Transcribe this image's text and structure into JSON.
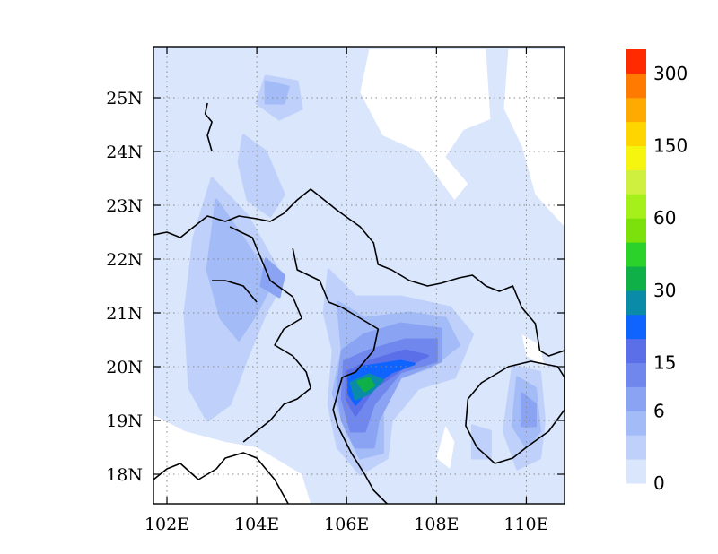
{
  "map": {
    "extent": {
      "lon_min": 101.7,
      "lon_max": 110.85,
      "lat_min": 17.45,
      "lat_max": 25.95
    },
    "lon_ticks": [
      {
        "value": 102,
        "label": "102E"
      },
      {
        "value": 104,
        "label": "104E"
      },
      {
        "value": 106,
        "label": "106E"
      },
      {
        "value": 108,
        "label": "108E"
      },
      {
        "value": 110,
        "label": "110E"
      }
    ],
    "lat_ticks": [
      {
        "value": 18,
        "label": "18N"
      },
      {
        "value": 19,
        "label": "19N"
      },
      {
        "value": 20,
        "label": "20N"
      },
      {
        "value": 21,
        "label": "21N"
      },
      {
        "value": 22,
        "label": "22N"
      },
      {
        "value": 23,
        "label": "23N"
      },
      {
        "value": 24,
        "label": "24N"
      },
      {
        "value": 25,
        "label": "25N"
      }
    ],
    "gridlines": "dotted"
  },
  "colorbar": {
    "levels": [
      0,
      3,
      6,
      10,
      15,
      20,
      25,
      30,
      40,
      50,
      60,
      80,
      100,
      150,
      200,
      250,
      300
    ],
    "colors": [
      "#d9e6fc",
      "#bfd1fa",
      "#a3bcf7",
      "#8aa3f2",
      "#7088ee",
      "#5a6fe8",
      "#0f64ff",
      "#0a8ca8",
      "#10b048",
      "#2ad22a",
      "#7ce00a",
      "#a5f01a",
      "#d0f040",
      "#f5f510",
      "#ffd500",
      "#ffaa00",
      "#ff7a00",
      "#ff2a00"
    ],
    "labels": [
      {
        "value": 0,
        "text": "0"
      },
      {
        "value": 6,
        "text": "6"
      },
      {
        "value": 15,
        "text": "15"
      },
      {
        "value": 30,
        "text": "30"
      },
      {
        "value": 60,
        "text": "60"
      },
      {
        "value": 150,
        "text": "150"
      },
      {
        "value": 300,
        "text": "300"
      }
    ]
  },
  "field_regions": [
    {
      "level": 1,
      "pts": [
        [
          103.0,
          23.5
        ],
        [
          103.8,
          22.8
        ],
        [
          104.2,
          22.2
        ],
        [
          104.6,
          21.6
        ],
        [
          104.2,
          21.0
        ],
        [
          103.8,
          20.2
        ],
        [
          103.4,
          19.3
        ],
        [
          102.9,
          19.0
        ],
        [
          102.5,
          19.6
        ],
        [
          102.4,
          21.0
        ],
        [
          102.6,
          22.4
        ]
      ]
    },
    {
      "level": 1,
      "pts": [
        [
          103.7,
          24.3
        ],
        [
          104.2,
          24.0
        ],
        [
          104.6,
          23.2
        ],
        [
          104.3,
          22.8
        ],
        [
          103.8,
          23.1
        ],
        [
          103.6,
          23.8
        ]
      ]
    },
    {
      "level": 1,
      "pts": [
        [
          104.2,
          25.4
        ],
        [
          104.9,
          25.3
        ],
        [
          105.0,
          24.8
        ],
        [
          104.5,
          24.6
        ],
        [
          104.0,
          24.9
        ]
      ]
    },
    {
      "level": 1,
      "pts": [
        [
          105.6,
          21.8
        ],
        [
          106.2,
          21.3
        ],
        [
          107.2,
          21.3
        ],
        [
          108.3,
          21.1
        ],
        [
          108.8,
          20.6
        ],
        [
          108.4,
          19.8
        ],
        [
          107.6,
          19.6
        ],
        [
          107.0,
          19.0
        ],
        [
          106.9,
          18.3
        ],
        [
          106.3,
          18.0
        ],
        [
          105.8,
          18.5
        ],
        [
          105.6,
          19.3
        ],
        [
          105.7,
          20.3
        ],
        [
          105.5,
          21.0
        ]
      ]
    },
    {
      "level": 1,
      "pts": [
        [
          109.7,
          20.0
        ],
        [
          110.3,
          19.9
        ],
        [
          110.4,
          19.0
        ],
        [
          110.3,
          18.3
        ],
        [
          109.8,
          18.1
        ],
        [
          109.5,
          18.8
        ]
      ]
    },
    {
      "level": 1,
      "pts": [
        [
          108.8,
          18.9
        ],
        [
          109.2,
          18.8
        ],
        [
          109.2,
          18.3
        ],
        [
          108.8,
          18.3
        ]
      ]
    },
    {
      "level": 2,
      "pts": [
        [
          103.1,
          23.1
        ],
        [
          103.6,
          22.5
        ],
        [
          104.0,
          22.0
        ],
        [
          104.3,
          21.5
        ],
        [
          104.0,
          21.0
        ],
        [
          103.6,
          20.5
        ],
        [
          103.2,
          20.9
        ],
        [
          102.9,
          21.8
        ]
      ]
    },
    {
      "level": 2,
      "pts": [
        [
          104.2,
          25.3
        ],
        [
          104.7,
          25.2
        ],
        [
          104.6,
          24.9
        ],
        [
          104.2,
          24.9
        ]
      ]
    },
    {
      "level": 2,
      "pts": [
        [
          105.8,
          21.2
        ],
        [
          106.4,
          20.9
        ],
        [
          107.4,
          21.0
        ],
        [
          108.2,
          20.9
        ],
        [
          108.5,
          20.4
        ],
        [
          107.9,
          20.0
        ],
        [
          107.2,
          19.8
        ],
        [
          106.8,
          19.2
        ],
        [
          106.8,
          18.4
        ],
        [
          106.3,
          18.3
        ],
        [
          106.0,
          18.8
        ],
        [
          105.7,
          19.5
        ],
        [
          105.9,
          20.3
        ]
      ]
    },
    {
      "level": 2,
      "pts": [
        [
          109.8,
          19.8
        ],
        [
          110.2,
          19.6
        ],
        [
          110.3,
          18.8
        ],
        [
          110.0,
          18.5
        ],
        [
          109.7,
          18.9
        ]
      ]
    },
    {
      "level": 3,
      "pts": [
        [
          104.2,
          22.0
        ],
        [
          104.6,
          21.7
        ],
        [
          104.5,
          21.3
        ],
        [
          104.1,
          21.5
        ]
      ]
    },
    {
      "level": 3,
      "pts": [
        [
          105.9,
          20.3
        ],
        [
          106.4,
          20.6
        ],
        [
          107.2,
          20.8
        ],
        [
          108.1,
          20.7
        ],
        [
          108.1,
          20.1
        ],
        [
          107.2,
          19.8
        ],
        [
          106.7,
          19.0
        ],
        [
          106.6,
          18.5
        ],
        [
          106.2,
          18.5
        ],
        [
          105.9,
          19.0
        ],
        [
          105.8,
          19.6
        ]
      ]
    },
    {
      "level": 3,
      "pts": [
        [
          109.9,
          19.5
        ],
        [
          110.2,
          19.3
        ],
        [
          110.2,
          18.9
        ],
        [
          109.9,
          18.9
        ]
      ]
    },
    {
      "level": 4,
      "pts": [
        [
          105.95,
          20.1
        ],
        [
          106.5,
          20.3
        ],
        [
          107.3,
          20.5
        ],
        [
          108.0,
          20.5
        ],
        [
          108.0,
          20.1
        ],
        [
          107.2,
          19.9
        ],
        [
          106.6,
          19.3
        ],
        [
          106.4,
          18.8
        ],
        [
          106.1,
          18.8
        ],
        [
          105.9,
          19.4
        ]
      ]
    },
    {
      "level": 5,
      "pts": [
        [
          106.0,
          19.9
        ],
        [
          106.5,
          20.1
        ],
        [
          107.3,
          20.3
        ],
        [
          107.8,
          20.2
        ],
        [
          107.3,
          20.0
        ],
        [
          106.6,
          19.6
        ],
        [
          106.2,
          19.1
        ],
        [
          106.0,
          19.4
        ]
      ]
    },
    {
      "level": 6,
      "pts": [
        [
          106.05,
          19.8
        ],
        [
          106.4,
          20.0
        ],
        [
          107.2,
          20.1
        ],
        [
          107.5,
          20.05
        ],
        [
          107.0,
          19.9
        ],
        [
          106.5,
          19.6
        ],
        [
          106.2,
          19.3
        ],
        [
          106.05,
          19.5
        ]
      ]
    },
    {
      "level": 7,
      "pts": [
        [
          106.1,
          19.7
        ],
        [
          106.5,
          19.85
        ],
        [
          106.8,
          19.75
        ],
        [
          106.5,
          19.5
        ],
        [
          106.2,
          19.4
        ]
      ]
    },
    {
      "level": 8,
      "pts": [
        [
          106.25,
          19.72
        ],
        [
          106.5,
          19.78
        ],
        [
          106.6,
          19.65
        ],
        [
          106.4,
          19.55
        ]
      ]
    }
  ],
  "blank_regions": [
    [
      [
        106.5,
        25.9
      ],
      [
        109.1,
        25.9
      ],
      [
        109.2,
        24.6
      ],
      [
        108.6,
        24.4
      ],
      [
        108.2,
        23.9
      ],
      [
        108.7,
        23.4
      ],
      [
        108.4,
        23.1
      ],
      [
        107.6,
        24.0
      ],
      [
        106.8,
        24.3
      ],
      [
        106.3,
        25.1
      ]
    ],
    [
      [
        109.6,
        25.9
      ],
      [
        110.85,
        25.9
      ],
      [
        110.85,
        22.6
      ],
      [
        110.2,
        23.2
      ],
      [
        109.9,
        24.1
      ],
      [
        109.5,
        24.8
      ]
    ],
    [
      [
        101.7,
        19.1
      ],
      [
        102.4,
        18.8
      ],
      [
        103.3,
        18.6
      ],
      [
        104.0,
        18.5
      ],
      [
        105.0,
        18.0
      ],
      [
        105.2,
        17.45
      ],
      [
        101.7,
        17.45
      ]
    ],
    [
      [
        108.2,
        18.9
      ],
      [
        108.4,
        18.6
      ],
      [
        108.3,
        18.1
      ],
      [
        108.0,
        18.3
      ]
    ],
    [
      [
        109.9,
        20.6
      ],
      [
        110.3,
        20.4
      ],
      [
        110.4,
        20.0
      ],
      [
        110.0,
        20.2
      ]
    ]
  ],
  "coastlines": [
    [
      [
        101.7,
        22.45
      ],
      [
        102.0,
        22.5
      ],
      [
        102.3,
        22.4
      ],
      [
        102.6,
        22.6
      ],
      [
        102.9,
        22.8
      ],
      [
        103.3,
        22.7
      ],
      [
        103.6,
        22.8
      ],
      [
        104.0,
        22.75
      ],
      [
        104.3,
        22.7
      ],
      [
        104.6,
        22.85
      ],
      [
        104.9,
        23.1
      ],
      [
        105.2,
        23.3
      ],
      [
        105.5,
        23.1
      ],
      [
        105.8,
        22.9
      ],
      [
        106.3,
        22.6
      ],
      [
        106.6,
        22.3
      ],
      [
        106.7,
        21.9
      ],
      [
        107.0,
        21.8
      ],
      [
        107.4,
        21.6
      ],
      [
        107.8,
        21.5
      ],
      [
        108.1,
        21.55
      ]
    ],
    [
      [
        104.8,
        22.2
      ],
      [
        104.9,
        21.8
      ],
      [
        105.4,
        21.6
      ],
      [
        105.6,
        21.2
      ],
      [
        105.9,
        21.1
      ],
      [
        106.1,
        21.0
      ],
      [
        106.5,
        20.8
      ],
      [
        106.7,
        20.7
      ],
      [
        106.6,
        20.3
      ],
      [
        106.2,
        19.9
      ],
      [
        105.9,
        19.8
      ],
      [
        105.7,
        19.2
      ],
      [
        105.8,
        18.9
      ],
      [
        106.1,
        18.4
      ],
      [
        106.4,
        18.0
      ],
      [
        106.6,
        17.7
      ],
      [
        106.9,
        17.45
      ]
    ],
    [
      [
        103.4,
        22.6
      ],
      [
        103.9,
        22.4
      ],
      [
        104.3,
        21.6
      ],
      [
        104.8,
        21.3
      ],
      [
        105.0,
        20.9
      ],
      [
        104.6,
        20.7
      ],
      [
        104.4,
        20.4
      ],
      [
        104.8,
        20.2
      ],
      [
        105.1,
        19.9
      ],
      [
        105.2,
        19.6
      ],
      [
        104.9,
        19.4
      ],
      [
        104.6,
        19.3
      ],
      [
        104.3,
        19.0
      ],
      [
        104.0,
        18.8
      ],
      [
        103.7,
        18.6
      ]
    ],
    [
      [
        103.0,
        21.6
      ],
      [
        103.3,
        21.6
      ],
      [
        103.7,
        21.5
      ],
      [
        104.0,
        21.2
      ]
    ],
    [
      [
        108.1,
        21.55
      ],
      [
        108.5,
        21.65
      ],
      [
        108.8,
        21.7
      ],
      [
        109.1,
        21.5
      ],
      [
        109.4,
        21.4
      ],
      [
        109.7,
        21.5
      ],
      [
        109.9,
        21.1
      ],
      [
        110.2,
        20.8
      ],
      [
        110.3,
        20.3
      ],
      [
        110.5,
        20.2
      ],
      [
        110.85,
        20.3
      ]
    ],
    [
      [
        108.7,
        19.4
      ],
      [
        109.0,
        19.7
      ],
      [
        109.6,
        20.0
      ],
      [
        110.1,
        20.1
      ],
      [
        110.7,
        20.0
      ],
      [
        110.85,
        19.8
      ],
      [
        110.85,
        19.2
      ],
      [
        110.5,
        18.8
      ],
      [
        110.0,
        18.5
      ],
      [
        109.7,
        18.3
      ],
      [
        109.3,
        18.2
      ],
      [
        108.9,
        18.5
      ],
      [
        108.65,
        18.9
      ],
      [
        108.7,
        19.4
      ]
    ],
    [
      [
        102.9,
        24.9
      ],
      [
        102.85,
        24.7
      ],
      [
        103.0,
        24.55
      ],
      [
        102.9,
        24.3
      ],
      [
        103.0,
        24.0
      ]
    ],
    [
      [
        101.7,
        17.9
      ],
      [
        102.0,
        18.1
      ],
      [
        102.3,
        18.2
      ],
      [
        102.7,
        17.9
      ],
      [
        103.1,
        18.1
      ],
      [
        103.3,
        18.3
      ],
      [
        103.7,
        18.4
      ],
      [
        104.0,
        18.3
      ],
      [
        104.4,
        17.9
      ],
      [
        104.7,
        17.45
      ]
    ]
  ]
}
